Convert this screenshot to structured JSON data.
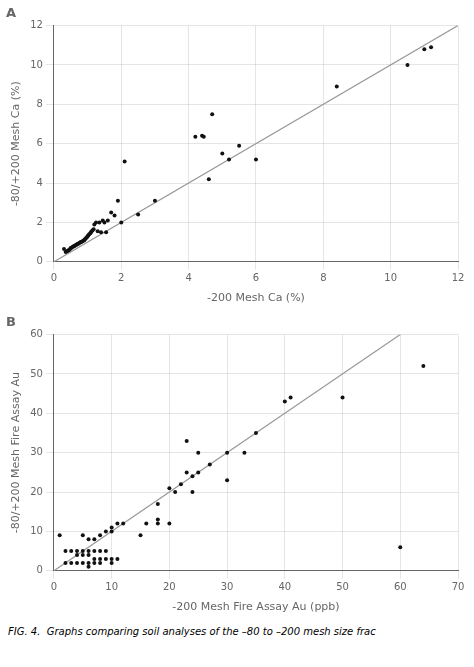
{
  "chart_data": [
    {
      "type": "scatter",
      "title": "A",
      "x_label": "-200 Mesh Ca (%)",
      "y_label": "-80/+200 Mesh Ca (%)",
      "xlim": [
        0,
        12
      ],
      "ylim": [
        0,
        12
      ],
      "xticks": [
        0,
        2,
        4,
        6,
        8,
        10,
        12
      ],
      "yticks": [
        0,
        2,
        4,
        6,
        8,
        10,
        12
      ],
      "grid": true,
      "series": [
        {
          "type": "line",
          "color": "#999999",
          "x": [
            0,
            12
          ],
          "values": [
            0,
            12
          ]
        },
        {
          "type": "scatter",
          "color": "#111111",
          "x": [
            0.3,
            0.35,
            0.4,
            0.42,
            0.45,
            0.48,
            0.5,
            0.52,
            0.55,
            0.58,
            0.6,
            0.62,
            0.65,
            0.68,
            0.7,
            0.72,
            0.75,
            0.78,
            0.8,
            0.82,
            0.85,
            0.88,
            0.9,
            0.92,
            0.95,
            0.98,
            1.0,
            1.02,
            1.05,
            1.08,
            1.1,
            1.12,
            1.15,
            1.18,
            1.2,
            1.25,
            1.3,
            1.35,
            1.4,
            1.45,
            1.5,
            1.55,
            1.6,
            1.7,
            1.8,
            1.9,
            2.0,
            2.1,
            2.5,
            3.0,
            4.2,
            4.4,
            4.45,
            4.6,
            4.7,
            5.0,
            5.2,
            5.5,
            6.0,
            8.4,
            10.5,
            11.0,
            11.2
          ],
          "values": [
            0.65,
            0.5,
            0.55,
            0.58,
            0.6,
            0.65,
            0.7,
            0.72,
            0.75,
            0.78,
            0.8,
            0.82,
            0.85,
            0.88,
            0.9,
            0.92,
            0.95,
            0.98,
            1.0,
            1.02,
            1.05,
            1.08,
            1.1,
            1.15,
            1.2,
            1.25,
            1.3,
            1.35,
            1.4,
            1.45,
            1.5,
            1.55,
            1.6,
            1.65,
            1.9,
            2.0,
            1.55,
            2.0,
            1.5,
            2.1,
            2.0,
            1.5,
            2.1,
            2.5,
            2.35,
            3.1,
            2.0,
            5.1,
            2.4,
            3.1,
            6.35,
            6.4,
            6.35,
            4.2,
            7.5,
            5.5,
            5.2,
            5.9,
            5.2,
            8.9,
            10.0,
            10.8,
            10.9
          ]
        }
      ]
    },
    {
      "type": "scatter",
      "title": "B",
      "x_label": "-200 Mesh Fire Assay Au (ppb)",
      "y_label": "-80/+200 Mesh Fire Assay Au",
      "xlim": [
        0,
        70
      ],
      "ylim": [
        0,
        60
      ],
      "xticks": [
        0,
        10,
        20,
        30,
        40,
        50,
        60,
        70
      ],
      "yticks": [
        0,
        10,
        20,
        30,
        40,
        50,
        60
      ],
      "grid": true,
      "annotations": [
        "FIG. 4.  Graphs comparing soil analyses of the –80 to –200 mesh size frac"
      ],
      "series": [
        {
          "type": "line",
          "color": "#999999",
          "x": [
            0,
            60
          ],
          "values": [
            0,
            60
          ]
        },
        {
          "type": "scatter",
          "color": "#111111",
          "x": [
            1,
            2,
            2,
            3,
            3,
            4,
            4,
            4,
            5,
            5,
            5,
            5,
            6,
            6,
            6,
            6,
            6,
            7,
            7,
            7,
            7,
            8,
            8,
            8,
            8,
            9,
            9,
            9,
            10,
            10,
            10,
            10,
            11,
            11,
            12,
            15,
            16,
            18,
            18,
            18,
            20,
            20,
            21,
            22,
            23,
            23,
            24,
            24,
            25,
            25,
            27,
            30,
            30,
            33,
            35,
            40,
            41,
            50,
            60,
            64
          ],
          "values": [
            9,
            5,
            2,
            2,
            5,
            2,
            4,
            5,
            2,
            4,
            5,
            9,
            1,
            2,
            4,
            5,
            8,
            2,
            3,
            5,
            8,
            2,
            3,
            5,
            9,
            3,
            5,
            10,
            2,
            3,
            10,
            11,
            3,
            12,
            12,
            9,
            12,
            12,
            13,
            17,
            12,
            21,
            20,
            22,
            25,
            33,
            20,
            24,
            25,
            30,
            27,
            23,
            30,
            30,
            35,
            43,
            44,
            44,
            6,
            52
          ]
        }
      ]
    }
  ]
}
